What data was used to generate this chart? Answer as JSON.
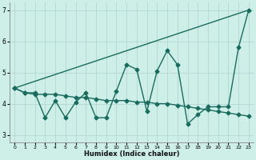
{
  "xlabel": "Humidex (Indice chaleur)",
  "xlim": [
    -0.5,
    23.5
  ],
  "ylim": [
    2.75,
    7.25
  ],
  "yticks": [
    3,
    4,
    5,
    6,
    7
  ],
  "xticks": [
    0,
    1,
    2,
    3,
    4,
    5,
    6,
    7,
    8,
    9,
    10,
    11,
    12,
    13,
    14,
    15,
    16,
    17,
    18,
    19,
    20,
    21,
    22,
    23
  ],
  "bg_color": "#ceeee8",
  "grid_color": "#aed4cc",
  "line_color": "#1a6b5f",
  "line1_x": [
    0,
    1,
    2,
    3,
    4,
    5,
    6,
    7,
    8,
    9,
    10,
    11,
    12,
    13,
    14,
    15,
    16,
    17,
    18,
    19,
    20,
    21,
    22,
    23
  ],
  "line1_y": [
    4.5,
    4.35,
    4.35,
    3.55,
    4.1,
    3.55,
    4.05,
    4.35,
    3.55,
    3.55,
    4.4,
    5.25,
    5.1,
    3.75,
    5.05,
    5.7,
    5.25,
    3.35,
    3.65,
    3.9,
    3.9,
    3.9,
    5.8,
    7.0
  ],
  "line2_x": [
    0,
    1,
    2,
    3,
    4,
    5,
    6,
    7,
    8,
    9,
    10,
    11,
    12,
    13,
    14,
    15,
    16,
    17,
    18,
    19,
    20,
    21,
    22,
    23
  ],
  "line2_y": [
    4.5,
    4.35,
    4.3,
    4.3,
    4.3,
    4.25,
    4.2,
    4.2,
    4.15,
    4.1,
    4.1,
    4.1,
    4.05,
    4.05,
    4.0,
    4.0,
    3.95,
    3.9,
    3.85,
    3.8,
    3.75,
    3.7,
    3.65,
    3.6
  ],
  "line3_x": [
    0,
    23
  ],
  "line3_y": [
    4.5,
    7.0
  ],
  "marker_size": 2.5,
  "line_width": 1.0
}
